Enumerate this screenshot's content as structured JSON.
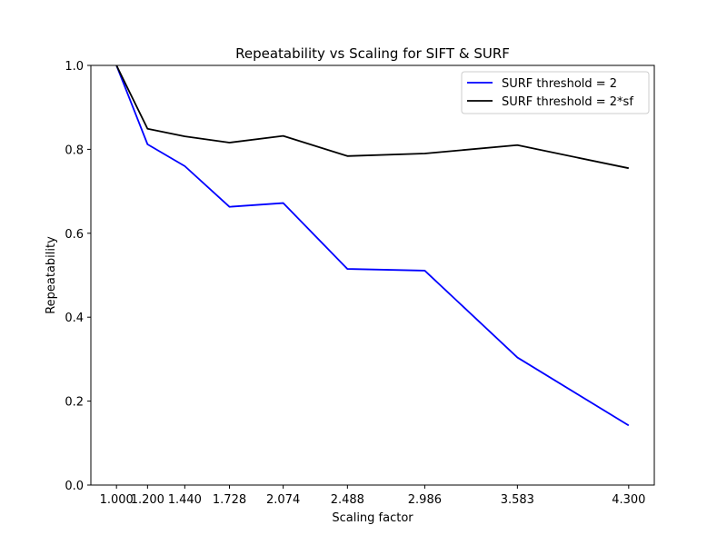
{
  "chart_data": {
    "type": "line",
    "title": "Repeatability vs Scaling for SIFT & SURF",
    "xlabel": "Scaling factor",
    "ylabel": "Repeatability",
    "x": [
      1.0,
      1.2,
      1.44,
      1.728,
      2.074,
      2.488,
      2.986,
      3.583,
      4.3
    ],
    "x_tick_labels": [
      "1.000",
      "1.200",
      "1.440",
      "1.728",
      "2.074",
      "2.488",
      "2.986",
      "3.583",
      "4.300"
    ],
    "xlim": [
      0.835,
      4.465
    ],
    "ylim": [
      0.0,
      1.0
    ],
    "y_ticks": [
      0.0,
      0.2,
      0.4,
      0.6,
      0.8,
      1.0
    ],
    "y_tick_labels": [
      "0.0",
      "0.2",
      "0.4",
      "0.6",
      "0.8",
      "1.0"
    ],
    "grid": false,
    "legend_position": "top-right",
    "series": [
      {
        "name": "SURF threshold = 2",
        "color": "#0000ff",
        "values": [
          1.0,
          0.812,
          0.76,
          0.663,
          0.672,
          0.515,
          0.511,
          0.304,
          0.142
        ]
      },
      {
        "name": "SURF threshold = 2*sf",
        "color": "#000000",
        "values": [
          1.0,
          0.849,
          0.831,
          0.816,
          0.832,
          0.784,
          0.79,
          0.81,
          0.755
        ]
      }
    ]
  }
}
